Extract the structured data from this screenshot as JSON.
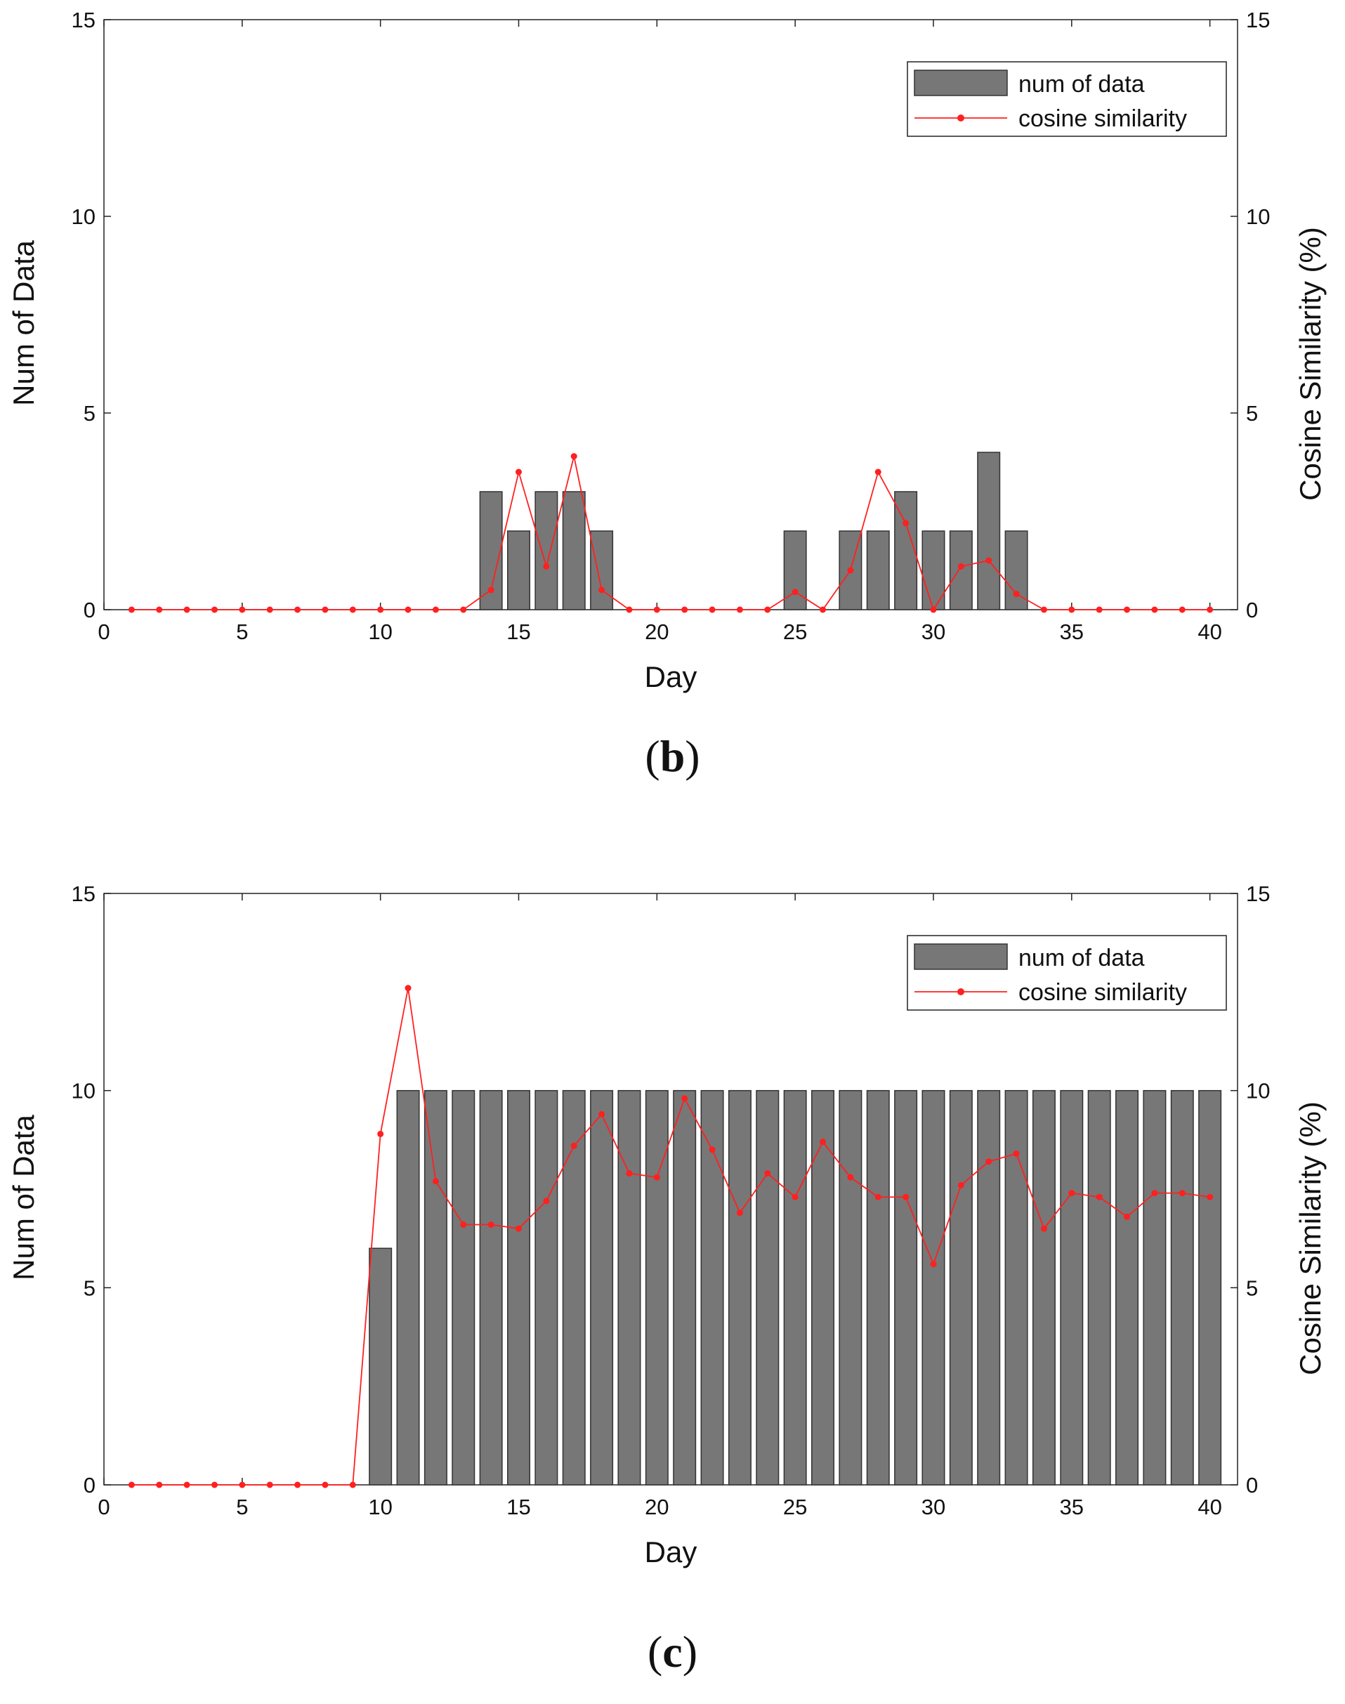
{
  "chart_data": [
    {
      "type": "bar+line",
      "panel_label": "b",
      "xlabel": "Day",
      "ylabel_left": "Num of Data",
      "ylabel_right": "Cosine Similarity (%)",
      "xlim": [
        0,
        41
      ],
      "ylim_left": [
        0,
        15
      ],
      "ylim_right": [
        0,
        15
      ],
      "xticks": [
        0,
        5,
        10,
        15,
        20,
        25,
        30,
        35,
        40
      ],
      "yticks_left": [
        0,
        5,
        10,
        15
      ],
      "yticks_right": [
        0,
        5,
        10,
        15
      ],
      "legend": [
        "num of data",
        "cosine similarity"
      ],
      "legend_position": "top-right",
      "bar_color": "#777777",
      "line_color": "#ff2020",
      "series": [
        {
          "name": "num of data",
          "kind": "bar",
          "axis": "left",
          "x": [
            14,
            15,
            16,
            17,
            18,
            25,
            27,
            28,
            29,
            30,
            31,
            32,
            33
          ],
          "values": [
            3,
            2,
            3,
            3,
            2,
            2,
            2,
            2,
            3,
            2,
            2,
            4,
            2
          ]
        },
        {
          "name": "cosine similarity",
          "kind": "line",
          "axis": "right",
          "x": [
            1,
            2,
            3,
            4,
            5,
            6,
            7,
            8,
            9,
            10,
            11,
            12,
            13,
            14,
            15,
            16,
            17,
            18,
            19,
            20,
            21,
            22,
            23,
            24,
            25,
            26,
            27,
            28,
            29,
            30,
            31,
            32,
            33,
            34,
            35,
            36,
            37,
            38,
            39,
            40
          ],
          "values": [
            0,
            0,
            0,
            0,
            0,
            0,
            0,
            0,
            0,
            0,
            0,
            0,
            0,
            0.5,
            3.5,
            1.1,
            3.9,
            0.5,
            0,
            0,
            0,
            0,
            0,
            0,
            0.45,
            0,
            1.0,
            3.5,
            2.2,
            0,
            1.1,
            1.25,
            0.4,
            0,
            0,
            0,
            0,
            0,
            0,
            0
          ]
        }
      ]
    },
    {
      "type": "bar+line",
      "panel_label": "c",
      "xlabel": "Day",
      "ylabel_left": "Num of Data",
      "ylabel_right": "Cosine Similarity (%)",
      "xlim": [
        0,
        41
      ],
      "ylim_left": [
        0,
        15
      ],
      "ylim_right": [
        0,
        15
      ],
      "xticks": [
        0,
        5,
        10,
        15,
        20,
        25,
        30,
        35,
        40
      ],
      "yticks_left": [
        0,
        5,
        10,
        15
      ],
      "yticks_right": [
        0,
        5,
        10,
        15
      ],
      "legend": [
        "num of data",
        "cosine similarity"
      ],
      "legend_position": "top-right",
      "bar_color": "#777777",
      "line_color": "#ff2020",
      "series": [
        {
          "name": "num of data",
          "kind": "bar",
          "axis": "left",
          "x": [
            10,
            11,
            12,
            13,
            14,
            15,
            16,
            17,
            18,
            19,
            20,
            21,
            22,
            23,
            24,
            25,
            26,
            27,
            28,
            29,
            30,
            31,
            32,
            33,
            34,
            35,
            36,
            37,
            38,
            39,
            40
          ],
          "values": [
            6,
            10,
            10,
            10,
            10,
            10,
            10,
            10,
            10,
            10,
            10,
            10,
            10,
            10,
            10,
            10,
            10,
            10,
            10,
            10,
            10,
            10,
            10,
            10,
            10,
            10,
            10,
            10,
            10,
            10,
            10
          ]
        },
        {
          "name": "cosine similarity",
          "kind": "line",
          "axis": "right",
          "x": [
            1,
            2,
            3,
            4,
            5,
            6,
            7,
            8,
            9,
            10,
            11,
            12,
            13,
            14,
            15,
            16,
            17,
            18,
            19,
            20,
            21,
            22,
            23,
            24,
            25,
            26,
            27,
            28,
            29,
            30,
            31,
            32,
            33,
            34,
            35,
            36,
            37,
            38,
            39,
            40
          ],
          "values": [
            0,
            0,
            0,
            0,
            0,
            0,
            0,
            0,
            0,
            8.9,
            12.6,
            7.7,
            6.6,
            6.6,
            6.5,
            7.2,
            8.6,
            9.4,
            7.9,
            7.8,
            9.8,
            8.5,
            6.9,
            7.9,
            7.3,
            8.7,
            7.8,
            7.3,
            7.3,
            5.6,
            7.6,
            8.2,
            8.4,
            6.5,
            7.4,
            7.3,
            6.8,
            7.4,
            7.4,
            7.3
          ]
        }
      ]
    }
  ]
}
